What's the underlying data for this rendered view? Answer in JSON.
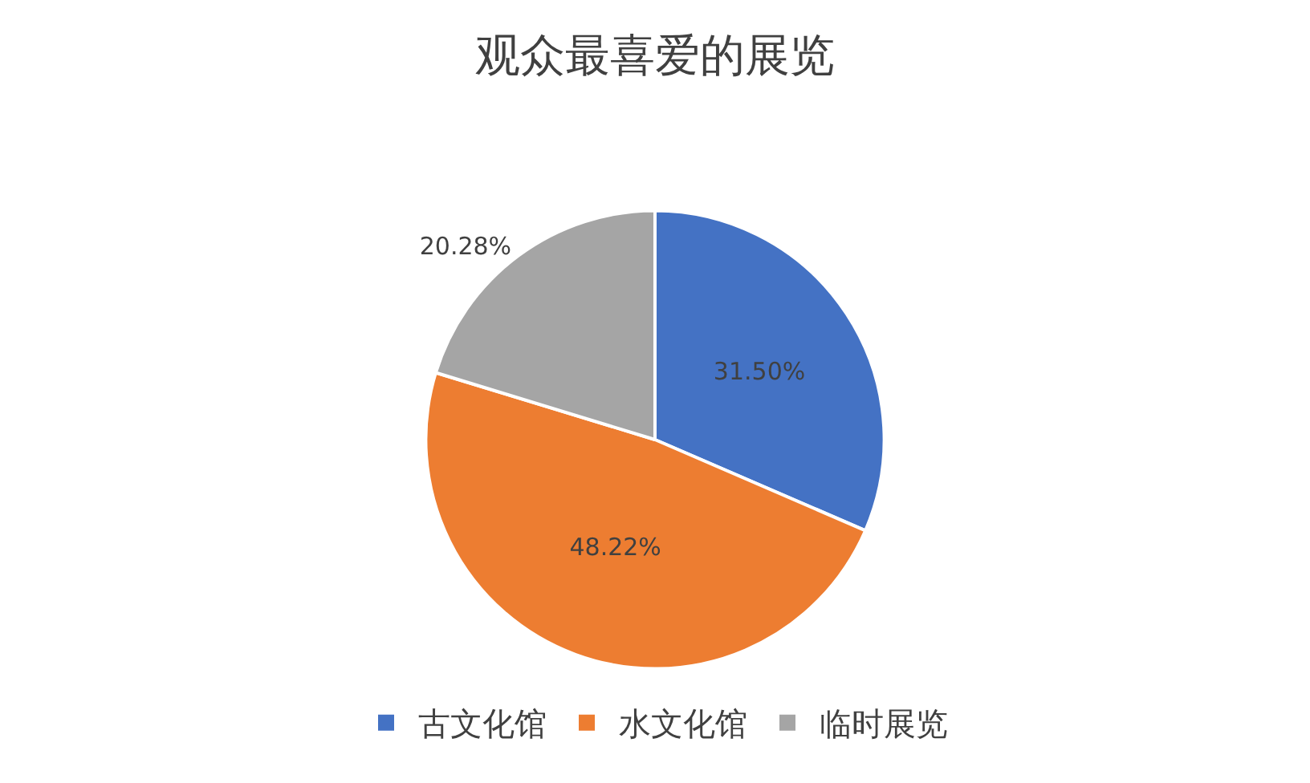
{
  "chart_data": {
    "type": "pie",
    "title": "观众最喜爱的展览",
    "categories": [
      "古文化馆",
      "水文化馆",
      "临时展览"
    ],
    "values": [
      31.5,
      48.22,
      20.28
    ],
    "value_labels": [
      "31.50%",
      "48.22%",
      "20.28%"
    ],
    "colors": [
      "#4472c4",
      "#ed7d31",
      "#a5a5a5"
    ],
    "legend": "bottom"
  }
}
